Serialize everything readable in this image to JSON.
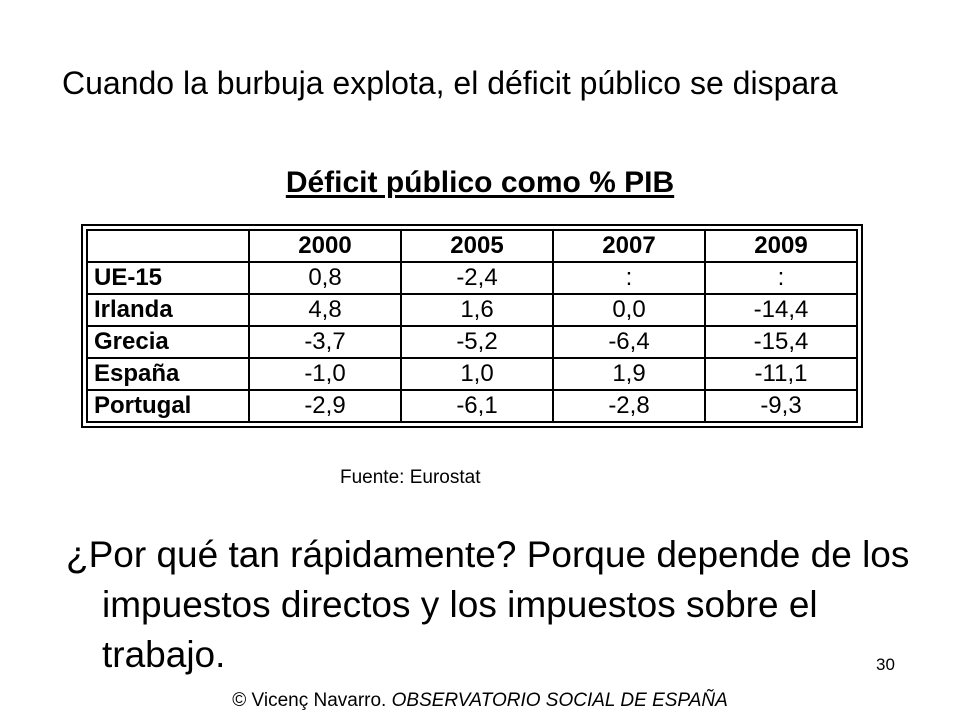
{
  "slide": {
    "heading": "Cuando la burbuja explota, el déficit público se dispara",
    "table_title": "Déficit público como % PIB",
    "source": "Fuente: Eurostat",
    "question": "¿Por qué tan rápidamente? Porque depende de los impuestos directos y los impuestos sobre el trabajo.",
    "page_number": "30",
    "footer": {
      "author": "© Vicenç Navarro.",
      "org": "OBSERVATORIO SOCIAL DE ESPAÑA"
    }
  },
  "table": {
    "header": [
      "",
      "2000",
      "2005",
      "2007",
      "2009"
    ],
    "rows": [
      {
        "label": "UE-15",
        "values": [
          "0,8",
          "-2,4",
          ":",
          ":"
        ]
      },
      {
        "label": "Irlanda",
        "values": [
          "4,8",
          "1,6",
          "0,0",
          "-14,4"
        ]
      },
      {
        "label": "Grecia",
        "values": [
          "-3,7",
          "-5,2",
          "-6,4",
          "-15,4"
        ]
      },
      {
        "label": "España",
        "values": [
          "-1,0",
          "1,0",
          "1,9",
          "-11,1"
        ]
      },
      {
        "label": "Portugal",
        "values": [
          "-2,9",
          "-6,1",
          "-2,8",
          "-9,3"
        ]
      }
    ]
  }
}
